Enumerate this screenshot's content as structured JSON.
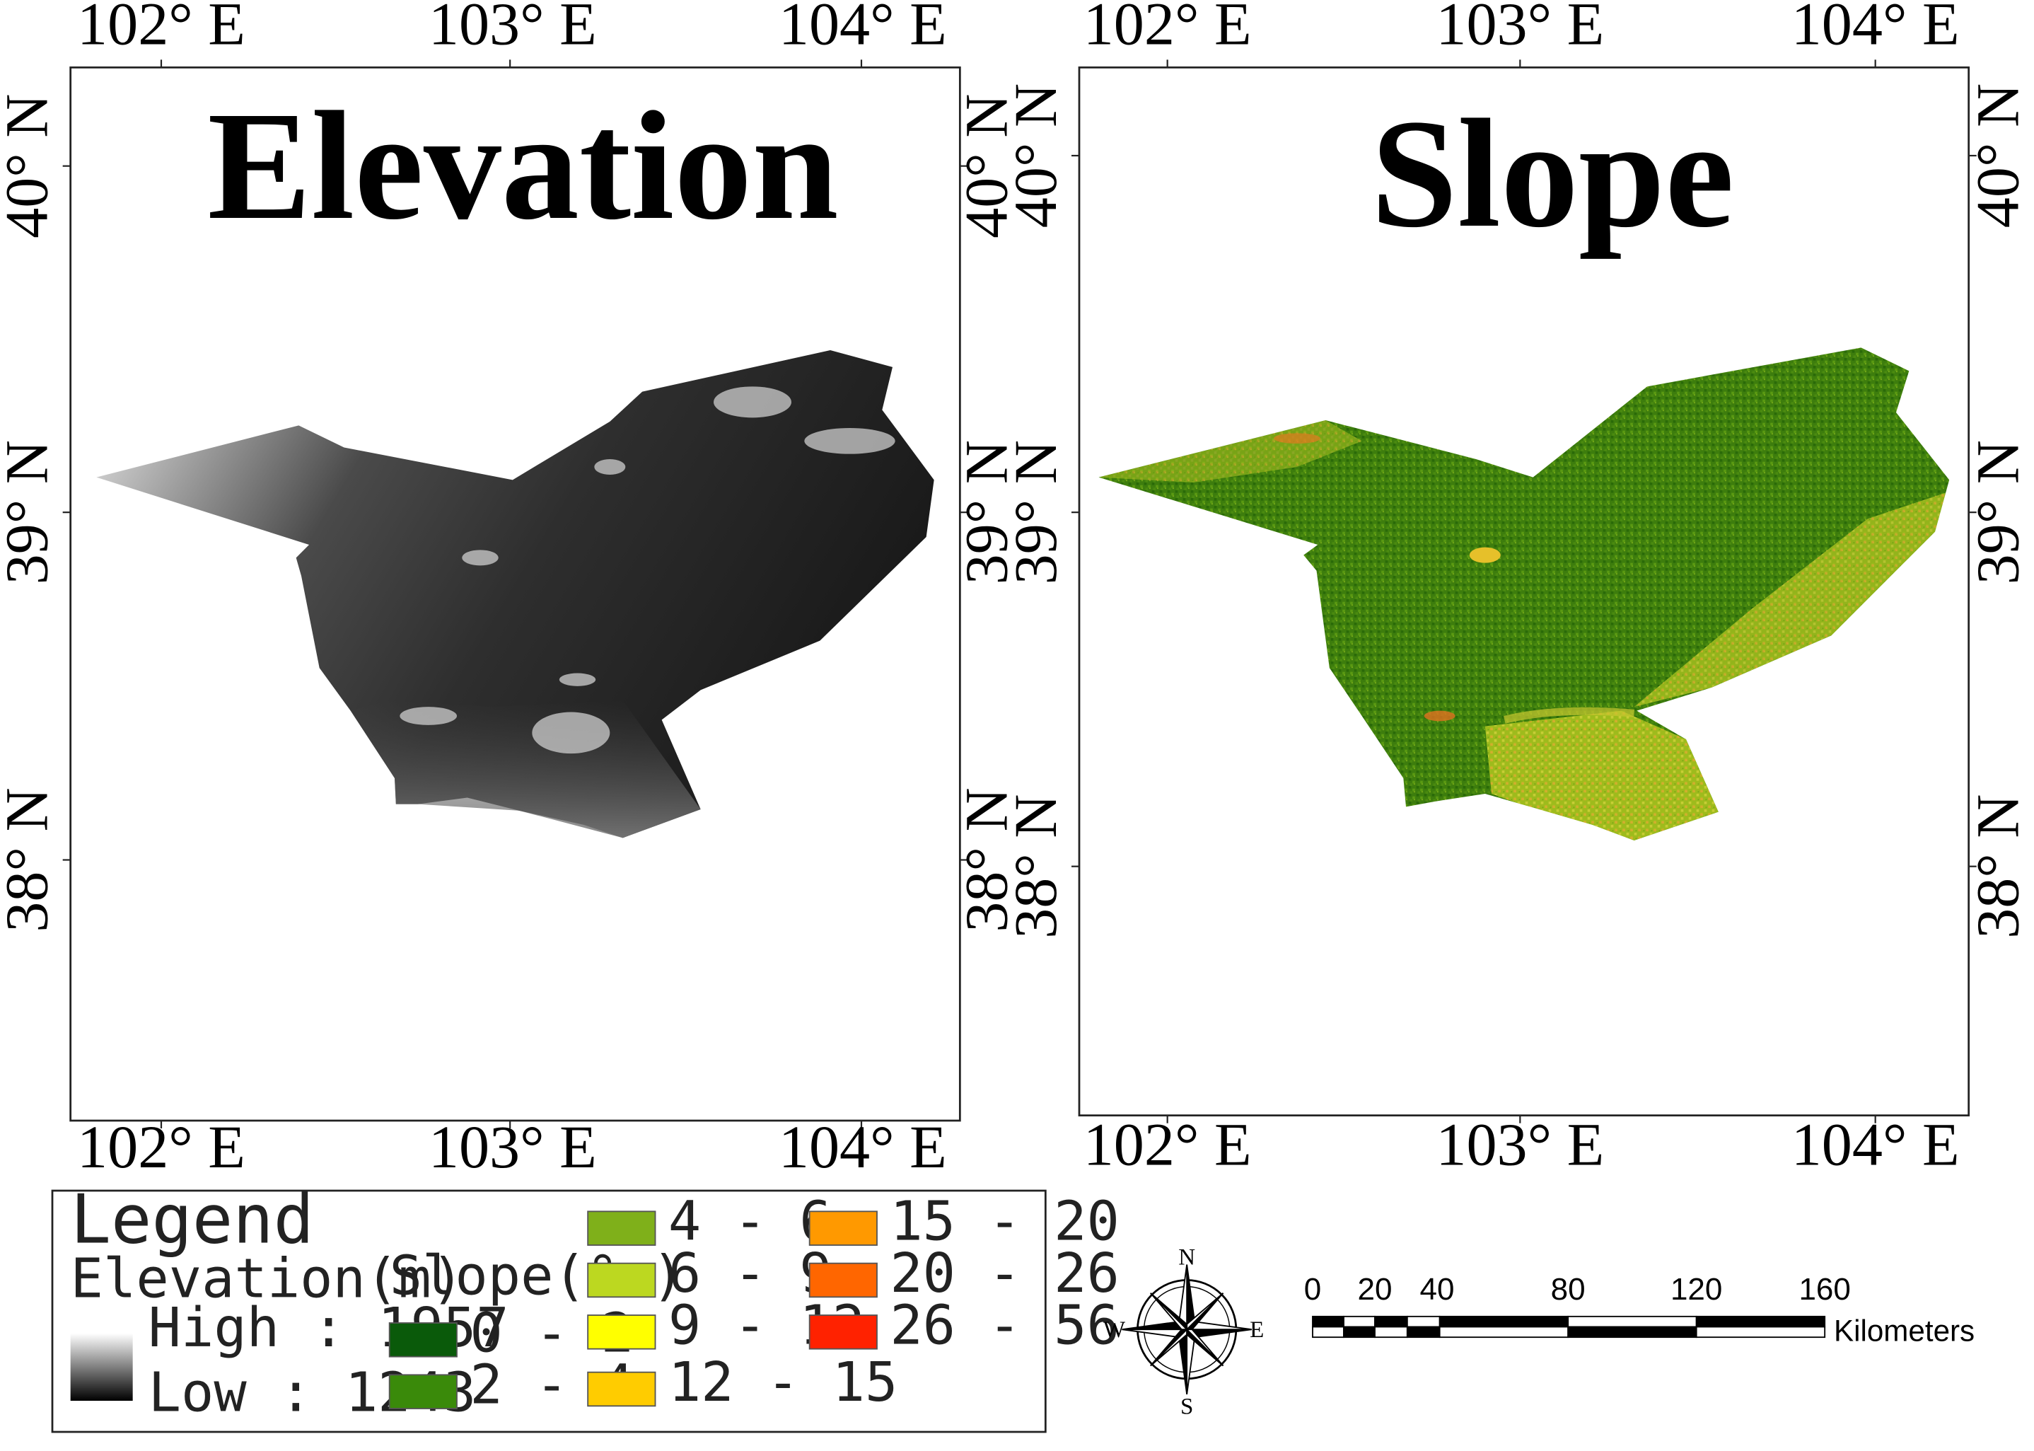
{
  "maps": [
    {
      "title": "Elevation",
      "lon_labels": [
        "102° E",
        "103° E",
        "104° E"
      ],
      "lat_labels": [
        "40° N",
        "39° N",
        "38° N"
      ]
    },
    {
      "title": "Slope",
      "lon_labels": [
        "102° E",
        "103° E",
        "104° E"
      ],
      "lat_labels": [
        "40° N",
        "39° N",
        "38° N"
      ]
    }
  ],
  "legend": {
    "title": "Legend",
    "elevation": {
      "heading": "Elevation(m)",
      "high_label": "High : 1957",
      "low_label": "Low : 1243",
      "high": 1957,
      "low": 1243
    },
    "slope": {
      "heading": "Slope(° )",
      "classes": [
        {
          "label": "0 - 2",
          "color": "#0a5a0a"
        },
        {
          "label": "2 - 4",
          "color": "#3a8a0a"
        },
        {
          "label": "4 - 6",
          "color": "#7fb01a"
        },
        {
          "label": "6 - 9",
          "color": "#bcd820"
        },
        {
          "label": "9 - 12",
          "color": "#ffff00"
        },
        {
          "label": "12 - 15",
          "color": "#ffcc00"
        },
        {
          "label": "15 - 20",
          "color": "#ff9900"
        },
        {
          "label": "20 - 26",
          "color": "#ff6600"
        },
        {
          "label": "26 - 56",
          "color": "#ff2200"
        }
      ]
    }
  },
  "compass": {
    "n": "N",
    "s": "S",
    "e": "E",
    "w": "W"
  },
  "scale_bar": {
    "ticks": [
      "0",
      "20",
      "40",
      "80",
      "120",
      "160"
    ],
    "unit": "Kilometers"
  }
}
